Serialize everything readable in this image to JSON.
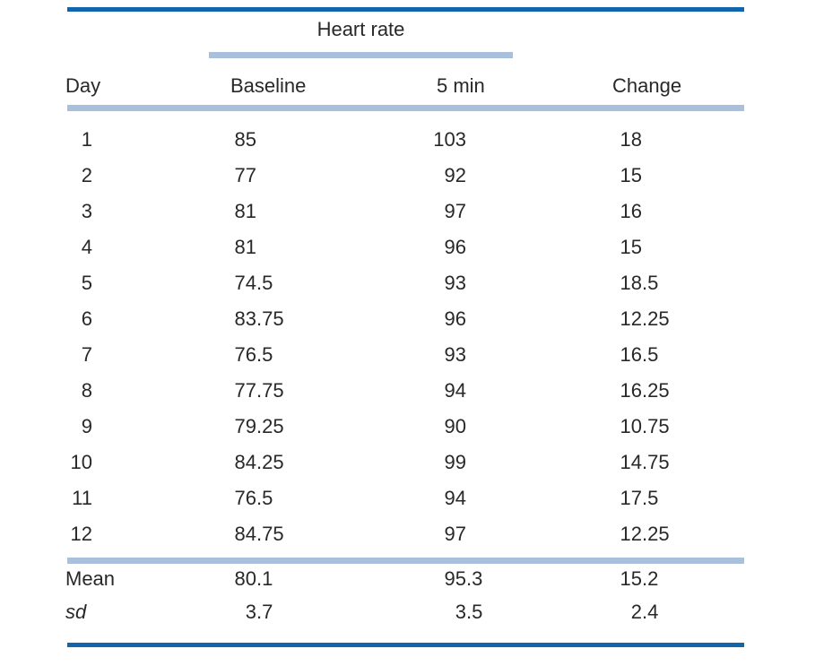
{
  "table": {
    "spanner_label": "Heart rate",
    "columns": [
      "Day",
      "Baseline",
      "5 min",
      "Change"
    ],
    "rows": [
      [
        "1",
        "85",
        "103",
        "18"
      ],
      [
        "2",
        "77",
        "92",
        "15"
      ],
      [
        "3",
        "81",
        "97",
        "16"
      ],
      [
        "4",
        "81",
        "96",
        "15"
      ],
      [
        "5",
        "74.5",
        "93",
        "18.5"
      ],
      [
        "6",
        "83.75",
        "96",
        "12.25"
      ],
      [
        "7",
        "76.5",
        "93",
        "16.5"
      ],
      [
        "8",
        "77.75",
        "94",
        "16.25"
      ],
      [
        "9",
        "79.25",
        "90",
        "10.75"
      ],
      [
        "10",
        "84.25",
        "99",
        "14.75"
      ],
      [
        "11",
        "76.5",
        "94",
        "17.5"
      ],
      [
        "12",
        "84.75",
        "97",
        "12.25"
      ]
    ],
    "footer": [
      {
        "label": "Mean",
        "italic": false,
        "values": [
          "80.1",
          "95.3",
          "15.2"
        ]
      },
      {
        "label": "sd",
        "italic": true,
        "values": [
          "3.7",
          "3.5",
          "2.4"
        ]
      }
    ],
    "colors": {
      "rule_dark": "#1164ae",
      "rule_light": "#a9c0dd",
      "text": "#2a2728"
    }
  }
}
